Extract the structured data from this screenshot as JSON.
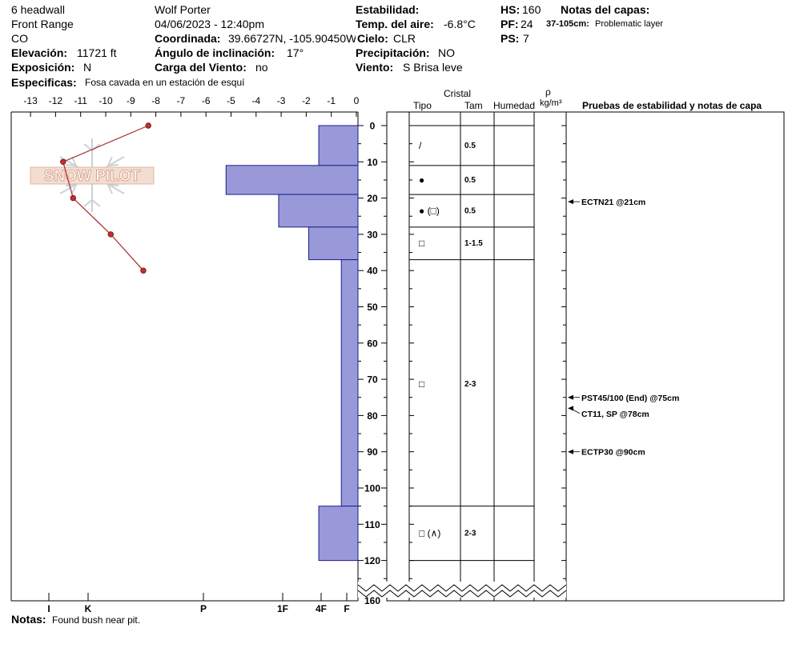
{
  "header": {
    "site_name": "6 headwall",
    "range": "Front Range",
    "state": "CO",
    "elevation_label": "Elevación:",
    "elevation_value": "11721 ft",
    "aspect_label": "Exposición:",
    "aspect_value": "N",
    "specifics_label": "Especificas:",
    "specifics_value": "Fosa cavada en un estación de esquí",
    "observer": "Wolf Porter",
    "datetime": "04/06/2023 - 12:40pm",
    "coord_label": "Coordinada:",
    "coord_value": "39.66727N, -105.90450W",
    "slope_label": "Ángulo de inclinación:",
    "slope_value": "17°",
    "wind_load_label": "Carga del Viento:",
    "wind_load_value": "no",
    "stability_label": "Estabilidad:",
    "air_temp_label": "Temp. del aire:",
    "air_temp_value": "-6.8°C",
    "sky_label": "Cielo:",
    "sky_value": "CLR",
    "precip_label": "Precipitación:",
    "precip_value": "NO",
    "wind_label": "Viento:",
    "wind_value": "S Brisa leve",
    "hs_label": "HS:",
    "hs_value": "160",
    "pf_label": "PF:",
    "pf_value": "24",
    "ps_label": "PS:",
    "ps_value": "7",
    "layer_notes_label": "Notas del capas:",
    "layer_note_range": "37-105cm:",
    "layer_note_text": "Problematic layer"
  },
  "columns": {
    "crystal": "Cristal",
    "type": "Tipo",
    "size": "Tam",
    "moisture": "Humedad",
    "density_symbol": "ρ",
    "density_unit": "kg/m³",
    "tests": "Pruebas de estabilidad y notas de capa"
  },
  "notes_label": "Notas:",
  "notes_value": "Found bush near pit.",
  "logo_text": "SNOW PILOT",
  "chart_data": {
    "type": "snow-profile",
    "temperature_axis": {
      "ticks": [
        -13,
        -12,
        -11,
        -10,
        -9,
        -8,
        -7,
        -6,
        -5,
        -4,
        -3,
        -2,
        -1,
        0
      ],
      "range": [
        -14.1,
        0
      ]
    },
    "depth_axis": {
      "ticks": [
        0,
        10,
        20,
        30,
        40,
        50,
        60,
        70,
        80,
        90,
        100,
        110,
        120,
        160
      ],
      "range": [
        -3.5,
        131
      ],
      "bottom_label_value": 160,
      "axis_break": true
    },
    "hardness_axis": {
      "labels": [
        "I",
        "K",
        "P",
        "1F",
        "4F",
        "F"
      ]
    },
    "temperature_profile": [
      {
        "depth": 0,
        "temp": -8.3
      },
      {
        "depth": 10,
        "temp": -11.7
      },
      {
        "depth": 20,
        "temp": -11.3
      },
      {
        "depth": 30,
        "temp": -9.8
      },
      {
        "depth": 40,
        "temp": -8.5
      }
    ],
    "layers": [
      {
        "top": 0,
        "bottom": 11,
        "hardness_value": -1.5,
        "crystal": "/",
        "size": "0.5"
      },
      {
        "top": 11,
        "bottom": 19,
        "hardness_value": -5.2,
        "crystal": "●",
        "size": "0.5"
      },
      {
        "top": 19,
        "bottom": 28,
        "hardness_value": -3.1,
        "crystal": "● (□)",
        "size": "0.5"
      },
      {
        "top": 28,
        "bottom": 37,
        "hardness_value": -1.9,
        "crystal": "□",
        "size": "1-1.5"
      },
      {
        "top": 37,
        "bottom": 105,
        "hardness_value": -0.6,
        "crystal": "□",
        "size": "2-3"
      },
      {
        "top": 105,
        "bottom": 120,
        "hardness_value": -1.5,
        "crystal": "□ (∧)",
        "size": "2-3"
      }
    ],
    "stability_tests": [
      {
        "depth": 21,
        "label": "ECTN21 @21cm"
      },
      {
        "depth": 75,
        "label": "PST45/100 (End) @75cm"
      },
      {
        "depth": 78,
        "label": "CT11, SP @78cm"
      },
      {
        "depth": 90,
        "label": "ECTP30 @90cm"
      }
    ]
  }
}
